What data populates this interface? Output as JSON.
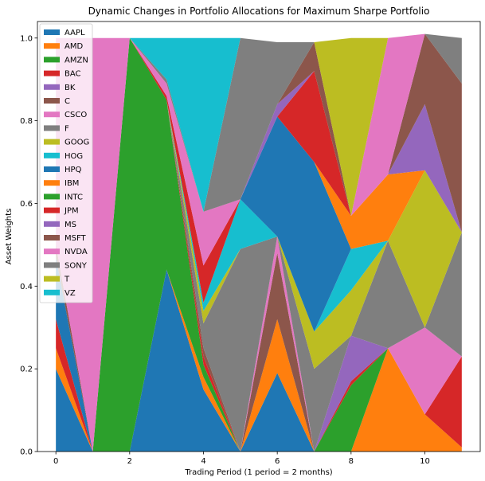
{
  "chart_data": {
    "type": "area",
    "stacked": true,
    "title": "Dynamic Changes in Portfolio Allocations for Maximum Sharpe Portfolio",
    "xlabel": "Trading Period (1 period = 2 months)",
    "ylabel": "Asset Weights",
    "xlim": [
      -0.5,
      11.5
    ],
    "ylim": [
      0,
      1.04
    ],
    "xticks": [
      0,
      2,
      4,
      6,
      8,
      10
    ],
    "yticks": [
      0.0,
      0.2,
      0.4,
      0.6,
      0.8,
      1.0
    ],
    "xtick_labels": [
      "0",
      "2",
      "4",
      "6",
      "8",
      "10"
    ],
    "ytick_labels": [
      "0.0",
      "0.2",
      "0.4",
      "0.6",
      "0.8",
      "1.0"
    ],
    "legend_position": "upper-left",
    "grid": false,
    "x": [
      0,
      1,
      2,
      3,
      4,
      5,
      6,
      7,
      8,
      9,
      10,
      11
    ],
    "series": [
      {
        "name": "AAPL",
        "color": "#1f77b4",
        "values": [
          0.2,
          0.0,
          0.0,
          0.44,
          0.15,
          0.0,
          0.19,
          0.0,
          0.0,
          0.0,
          0.0,
          0.0
        ]
      },
      {
        "name": "AMD",
        "color": "#ff7f0e",
        "values": [
          0.05,
          0.0,
          0.0,
          0.0,
          0.03,
          0.0,
          0.13,
          0.0,
          0.0,
          0.25,
          0.09,
          0.01
        ]
      },
      {
        "name": "AMZN",
        "color": "#2ca02c",
        "values": [
          0.0,
          0.0,
          1.0,
          0.41,
          0.03,
          0.0,
          0.0,
          0.0,
          0.16,
          0.0,
          0.0,
          0.0
        ]
      },
      {
        "name": "BAC",
        "color": "#d62728",
        "values": [
          0.07,
          0.0,
          0.0,
          0.0,
          0.02,
          0.0,
          0.0,
          0.0,
          0.01,
          0.0,
          0.0,
          0.22
        ]
      },
      {
        "name": "BK",
        "color": "#9467bd",
        "values": [
          0.0,
          0.0,
          0.0,
          0.0,
          0.0,
          0.0,
          0.0,
          0.0,
          0.11,
          0.0,
          0.0,
          0.0
        ]
      },
      {
        "name": "C",
        "color": "#8c564b",
        "values": [
          0.0,
          0.0,
          0.0,
          0.0,
          0.02,
          0.0,
          0.16,
          0.0,
          0.0,
          0.0,
          0.0,
          0.0
        ]
      },
      {
        "name": "CSCO",
        "color": "#e377c2",
        "values": [
          0.0,
          0.0,
          0.0,
          0.0,
          0.0,
          0.0,
          0.04,
          0.0,
          0.0,
          0.0,
          0.21,
          0.0
        ]
      },
      {
        "name": "F",
        "color": "#7f7f7f",
        "values": [
          0.0,
          0.0,
          0.0,
          0.0,
          0.06,
          0.49,
          0.0,
          0.2,
          0.0,
          0.26,
          0.0,
          0.3
        ]
      },
      {
        "name": "GOOG",
        "color": "#bcbd22",
        "values": [
          0.0,
          0.0,
          0.0,
          0.0,
          0.03,
          0.0,
          0.0,
          0.09,
          0.11,
          0.0,
          0.38,
          0.0
        ]
      },
      {
        "name": "HOG",
        "color": "#17becf",
        "values": [
          0.0,
          0.0,
          0.0,
          0.0,
          0.02,
          0.12,
          0.0,
          0.0,
          0.1,
          0.0,
          0.0,
          0.0
        ]
      },
      {
        "name": "HPQ",
        "color": "#1f77b4",
        "values": [
          0.15,
          0.0,
          0.0,
          0.0,
          0.0,
          0.0,
          0.29,
          0.41,
          0.0,
          0.0,
          0.0,
          0.0
        ]
      },
      {
        "name": "IBM",
        "color": "#ff7f0e",
        "values": [
          0.0,
          0.0,
          0.0,
          0.0,
          0.0,
          0.0,
          0.0,
          0.0,
          0.08,
          0.16,
          0.0,
          0.0
        ]
      },
      {
        "name": "INTC",
        "color": "#2ca02c",
        "values": [
          0.0,
          0.0,
          0.0,
          0.0,
          0.0,
          0.0,
          0.0,
          0.0,
          0.0,
          0.0,
          0.0,
          0.0
        ]
      },
      {
        "name": "JPM",
        "color": "#d62728",
        "values": [
          0.0,
          0.0,
          0.0,
          0.01,
          0.09,
          0.0,
          0.0,
          0.22,
          0.0,
          0.0,
          0.0,
          0.0
        ]
      },
      {
        "name": "MS",
        "color": "#9467bd",
        "values": [
          0.0,
          0.0,
          0.0,
          0.0,
          0.0,
          0.0,
          0.03,
          0.0,
          0.0,
          0.0,
          0.16,
          0.0
        ]
      },
      {
        "name": "MSFT",
        "color": "#8c564b",
        "values": [
          0.03,
          0.0,
          0.0,
          0.0,
          0.0,
          0.0,
          0.0,
          0.07,
          0.0,
          0.0,
          0.17,
          0.36
        ]
      },
      {
        "name": "NVDA",
        "color": "#e377c2",
        "values": [
          0.5,
          1.0,
          0.0,
          0.03,
          0.13,
          0.0,
          0.0,
          0.0,
          0.0,
          0.33,
          0.0,
          0.0
        ]
      },
      {
        "name": "SONY",
        "color": "#7f7f7f",
        "values": [
          0.0,
          0.0,
          0.0,
          0.01,
          0.0,
          0.39,
          0.15,
          0.0,
          0.0,
          0.0,
          0.0,
          0.11
        ]
      },
      {
        "name": "T",
        "color": "#bcbd22",
        "values": [
          0.0,
          0.0,
          0.0,
          0.0,
          0.0,
          0.0,
          0.0,
          0.0,
          0.43,
          0.0,
          0.0,
          0.0
        ]
      },
      {
        "name": "VZ",
        "color": "#17becf",
        "values": [
          0.0,
          0.0,
          0.0,
          0.1,
          0.42,
          0.0,
          0.0,
          0.0,
          0.0,
          0.0,
          0.0,
          0.0
        ]
      }
    ]
  }
}
